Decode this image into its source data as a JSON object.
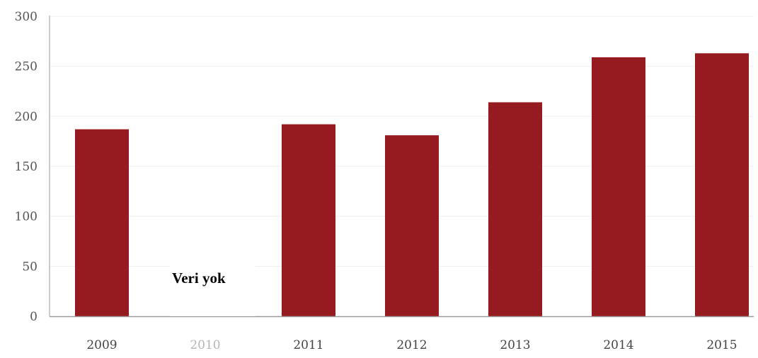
{
  "colors": {
    "bar": "#961b20",
    "gridline": "#eeeeee",
    "axis": "#9a9a9a"
  },
  "no_data_label": "Veri yok",
  "chart_data": {
    "type": "bar",
    "categories": [
      "2009",
      "2010",
      "2011",
      "2012",
      "2013",
      "2014",
      "2015"
    ],
    "values": [
      187,
      null,
      192,
      181,
      214,
      259,
      263
    ],
    "yticks": [
      0,
      50,
      100,
      150,
      200,
      250,
      300
    ],
    "ylim": [
      0,
      300
    ],
    "title": "",
    "xlabel": "",
    "ylabel": "",
    "grid": true
  }
}
